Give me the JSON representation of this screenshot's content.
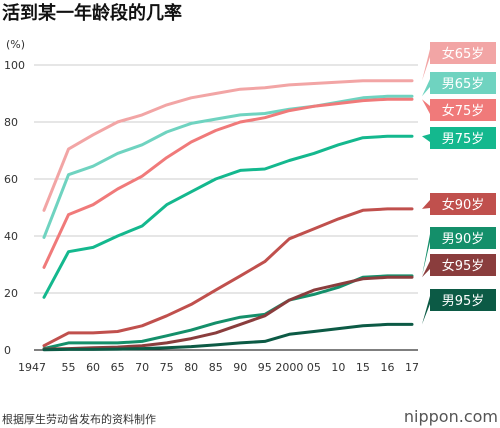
{
  "chart_data": {
    "type": "line",
    "title": "活到某一年龄段的几率",
    "unit_label": "(%)",
    "ylim": [
      0,
      100
    ],
    "y_ticks": [
      0,
      20,
      40,
      60,
      80,
      100
    ],
    "x": [
      "1947",
      "55",
      "60",
      "65",
      "70",
      "75",
      "80",
      "85",
      "90",
      "95",
      "2000",
      "05",
      "10",
      "15",
      "16",
      "17"
    ],
    "grid": "horizontal",
    "legend": "right",
    "series": [
      {
        "name": "女65岁",
        "color": "#f2a5a5",
        "values": [
          49,
          70.5,
          75.5,
          80,
          82.5,
          86,
          88.5,
          90,
          91.5,
          92,
          93,
          93.5,
          94,
          94.5,
          94.5,
          94.5
        ]
      },
      {
        "name": "男65岁",
        "color": "#6fd3c0",
        "values": [
          39.5,
          61.5,
          64.5,
          69,
          72,
          76.5,
          79.5,
          81,
          82.5,
          83,
          84.5,
          85.5,
          87,
          88.5,
          89,
          89
        ]
      },
      {
        "name": "女75岁",
        "color": "#f07a7a",
        "values": [
          29,
          47.5,
          51,
          56.5,
          61,
          67.5,
          73,
          77,
          80,
          81.5,
          84,
          85.5,
          86.5,
          87.5,
          88,
          88
        ]
      },
      {
        "name": "男75岁",
        "color": "#14b88e",
        "values": [
          18.5,
          34.5,
          36,
          40,
          43.5,
          51,
          55.5,
          60,
          63,
          63.5,
          66.5,
          69,
          72,
          74.5,
          75,
          75
        ]
      },
      {
        "name": "女90岁",
        "color": "#c0504d",
        "values": [
          1.5,
          6,
          6,
          6.5,
          8.5,
          12,
          16,
          21,
          26,
          31,
          39,
          42.5,
          46,
          49,
          49.5,
          49.5
        ]
      },
      {
        "name": "男90岁",
        "color": "#148f6a",
        "values": [
          0.5,
          2.5,
          2.5,
          2.5,
          3,
          5,
          7,
          9.5,
          11.5,
          12.5,
          17.5,
          19.5,
          22,
          25.5,
          26,
          26
        ]
      },
      {
        "name": "女95岁",
        "color": "#8a3d3d",
        "values": [
          0.3,
          0.5,
          0.8,
          1,
          1.5,
          2.5,
          4,
          6,
          9,
          12,
          17.5,
          21,
          23,
          25,
          25.5,
          25.5
        ]
      },
      {
        "name": "男95岁",
        "color": "#0c5a45",
        "values": [
          0.1,
          0.2,
          0.2,
          0.3,
          0.5,
          0.8,
          1.2,
          1.8,
          2.5,
          3,
          5.5,
          6.5,
          7.5,
          8.5,
          9,
          9
        ]
      }
    ]
  },
  "footer": {
    "source": "根据厚生劳动省发布的资料制作",
    "brand": "nippon.com"
  }
}
